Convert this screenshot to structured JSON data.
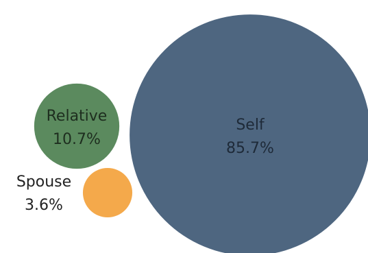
{
  "chart_data": {
    "type": "bubble",
    "series": [
      {
        "name": "Self",
        "value": 85.7,
        "value_label": "85.7%",
        "color": "#4e6680",
        "text_color": "#1e2a38",
        "label_position": "inside"
      },
      {
        "name": "Relative",
        "value": 10.7,
        "value_label": "10.7%",
        "color": "#5b8a5e",
        "text_color": "#1e2e1f",
        "label_position": "inside"
      },
      {
        "name": "Spouse",
        "value": 3.6,
        "value_label": "3.6%",
        "color": "#f4a94b",
        "text_color": "#222222",
        "label_position": "outside-left"
      }
    ]
  }
}
